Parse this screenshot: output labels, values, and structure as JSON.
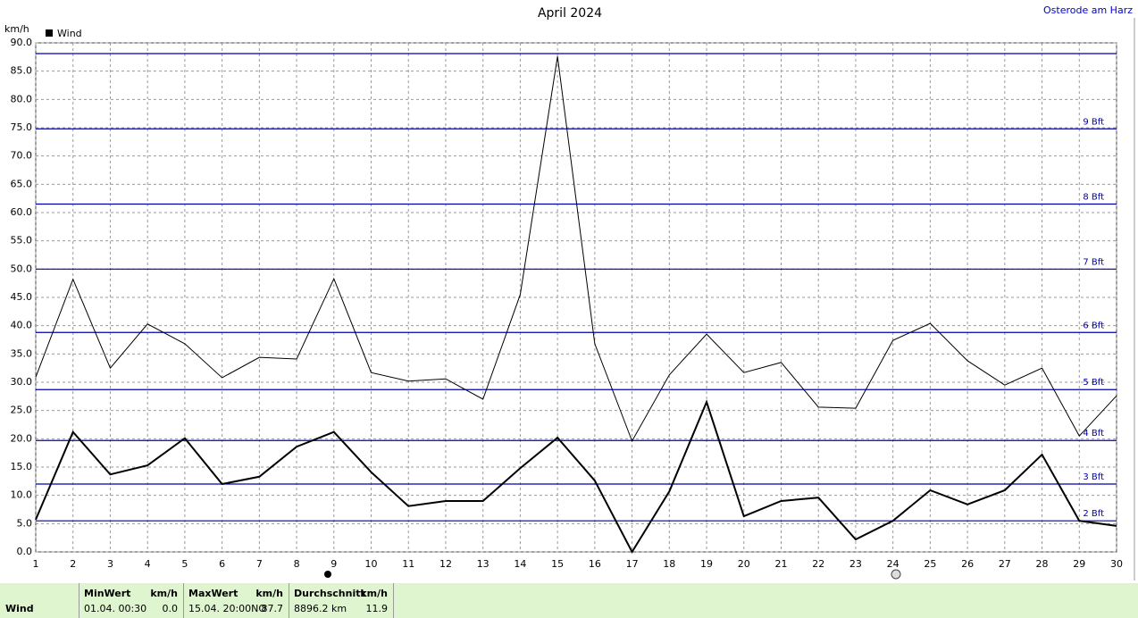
{
  "chart_data": {
    "type": "line",
    "title": "April 2024",
    "subtitle": "Osterode am Harz",
    "y_label": "km/h",
    "x": [
      1,
      2,
      3,
      4,
      5,
      6,
      7,
      8,
      9,
      10,
      11,
      12,
      13,
      14,
      15,
      16,
      17,
      18,
      19,
      20,
      21,
      22,
      23,
      24,
      25,
      26,
      27,
      28,
      29,
      30
    ],
    "xlim": [
      1,
      30
    ],
    "xticks": [
      1,
      2,
      3,
      4,
      5,
      6,
      7,
      8,
      9,
      10,
      11,
      12,
      13,
      14,
      15,
      16,
      17,
      18,
      19,
      20,
      21,
      22,
      23,
      24,
      25,
      26,
      27,
      28,
      29,
      30
    ],
    "ylim": [
      0,
      90
    ],
    "yticks": [
      {
        "value": 0,
        "label": "0.0"
      },
      {
        "value": 5,
        "label": "5.0"
      },
      {
        "value": 10,
        "label": "10.0"
      },
      {
        "value": 15,
        "label": "15.0"
      },
      {
        "value": 20,
        "label": "20.0"
      },
      {
        "value": 25,
        "label": "25.0"
      },
      {
        "value": 30,
        "label": "30.0"
      },
      {
        "value": 35,
        "label": "35.0"
      },
      {
        "value": 40,
        "label": "40.0"
      },
      {
        "value": 45,
        "label": "45.0"
      },
      {
        "value": 50,
        "label": "50.0"
      },
      {
        "value": 55,
        "label": "55.0"
      },
      {
        "value": 60,
        "label": "60.0"
      },
      {
        "value": 65,
        "label": "65.0"
      },
      {
        "value": 70,
        "label": "70.0"
      },
      {
        "value": 75,
        "label": "75.0"
      },
      {
        "value": 80,
        "label": "80.0"
      },
      {
        "value": 85,
        "label": "85.0"
      },
      {
        "value": 90,
        "label": "90.0"
      }
    ],
    "grid": true,
    "series": [
      {
        "name": "Wind",
        "color": "#000000",
        "values": [
          5.7,
          21.2,
          13.7,
          15.3,
          20.1,
          12.0,
          13.3,
          18.6,
          21.2,
          14.1,
          8.1,
          9.0,
          9.0,
          14.8,
          20.2,
          12.6,
          0,
          10.7,
          26.5,
          6.3,
          9.0,
          9.6,
          2.2,
          5.5,
          10.9,
          8.4,
          10.9,
          17.2,
          5.5,
          4.6
        ]
      },
      {
        "color": "#000000",
        "values": [
          30.9,
          48.2,
          32.5,
          40.3,
          36.8,
          30.8,
          34.4,
          34.1,
          48.3,
          31.7,
          30.2,
          30.6,
          27.0,
          45.5,
          87.6,
          36.8,
          19.6,
          31.3,
          38.5,
          31.7,
          33.5,
          25.6,
          25.4,
          37.4,
          40.4,
          33.8,
          29.5,
          32.5,
          20.5,
          27.6
        ]
      }
    ],
    "reference_lines": {
      "color": "#0000aa",
      "lines": [
        {
          "value": 5.5,
          "label": "2 Bft"
        },
        {
          "value": 12.0,
          "label": "3 Bft"
        },
        {
          "value": 19.7,
          "label": "4 Bft"
        },
        {
          "value": 28.7,
          "label": "5 Bft"
        },
        {
          "value": 38.8,
          "label": "6 Bft"
        },
        {
          "value": 50.0,
          "label": "7 Bft"
        },
        {
          "value": 61.5,
          "label": "8 Bft"
        },
        {
          "value": 74.8,
          "label": "9 Bft"
        },
        {
          "value": 88.1
        }
      ]
    }
  },
  "footer": {
    "row_label": "Wind",
    "cells": [
      {
        "head": "MinWert",
        "unit": "km/h",
        "left": "01.04.  00:30",
        "right": "0.0"
      },
      {
        "head": "MaxWert",
        "unit": "km/h",
        "left": "15.04.  20:00NO",
        "right": "87.7"
      },
      {
        "head": "Durchschnitt",
        "unit": "km/h",
        "left": "8896.2 km",
        "right": "11.9"
      }
    ]
  }
}
